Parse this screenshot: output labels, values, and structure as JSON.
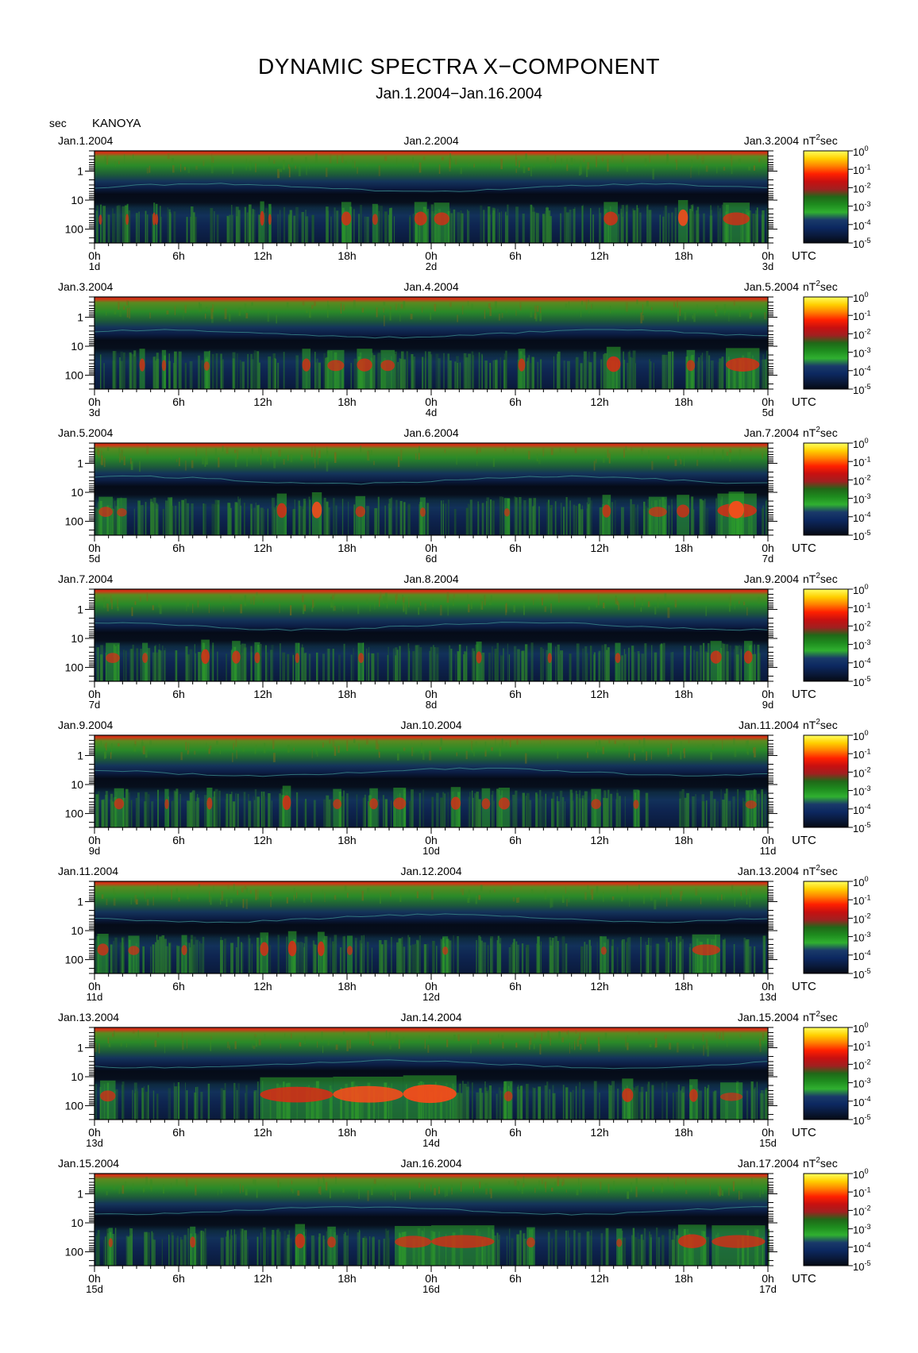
{
  "title": "DYNAMIC SPECTRA X−COMPONENT",
  "subtitle": "Jan.1.2004−Jan.16.2004",
  "station": {
    "unit": "sec",
    "name": "KANOYA"
  },
  "colorbar": {
    "unit_base": "nT",
    "unit_exp": "2",
    "unit_suffix": "sec",
    "ticks": [
      {
        "base": "10",
        "exp": "0"
      },
      {
        "base": "10",
        "exp": "-1"
      },
      {
        "base": "10",
        "exp": "-2"
      },
      {
        "base": "10",
        "exp": "-3"
      },
      {
        "base": "10",
        "exp": "-4"
      },
      {
        "base": "10",
        "exp": "-5"
      }
    ],
    "colors": [
      "#ffff60",
      "#ffd000",
      "#ff8000",
      "#ff2000",
      "#c81010",
      "#a02020",
      "#206818",
      "#1e8c1e",
      "#30b030",
      "#1a3a6a",
      "#0c2860",
      "#0a1a3c",
      "#050a14"
    ]
  },
  "chart_data": {
    "type": "heatmap",
    "description_axes": {
      "y_axis": "period (sec), log scale, inverted: small periods at top",
      "y_ticks": [
        "1",
        "10",
        "100"
      ],
      "x_ticks": [
        "0h",
        "6h",
        "12h",
        "18h",
        "0h",
        "6h",
        "12h",
        "18h",
        "0h"
      ],
      "x_unit": "UTC",
      "color_scale": "power spectral density nT^2 sec, log, 1e-5 to 1e0"
    },
    "panels": [
      {
        "left_date": "Jan.1.2004",
        "mid_date": "Jan.2.2004",
        "right_date": "Jan.3.2004",
        "day_start": "1d",
        "day_mid": "2d",
        "day_end": "3d",
        "events": [
          [
            0.4,
            0.45,
            0.55
          ],
          [
            2.3,
            2.35,
            0.6
          ],
          [
            4.2,
            4.3,
            0.7
          ],
          [
            4.35,
            4.5,
            0.6
          ],
          [
            11.8,
            12.1,
            0.8
          ],
          [
            12.4,
            12.6,
            0.6
          ],
          [
            17.6,
            18.3,
            0.75
          ],
          [
            19.8,
            20.2,
            0.6
          ],
          [
            22.8,
            23.7,
            0.75
          ],
          [
            24.2,
            25.3,
            0.7
          ],
          [
            36.3,
            37.3,
            0.75
          ],
          [
            41.6,
            42.3,
            0.9
          ],
          [
            44.8,
            46.7,
            0.7
          ]
        ]
      },
      {
        "left_date": "Jan.3.2004",
        "mid_date": "Jan.4.2004",
        "right_date": "Jan.5.2004",
        "day_start": "3d",
        "day_mid": "4d",
        "day_end": "5d",
        "events": [
          [
            3.2,
            3.6,
            0.7
          ],
          [
            4.8,
            5.1,
            0.6
          ],
          [
            7.8,
            8.2,
            0.5
          ],
          [
            14.8,
            15.4,
            0.7
          ],
          [
            16.6,
            17.8,
            0.6
          ],
          [
            18.7,
            19.8,
            0.7
          ],
          [
            20.4,
            21.4,
            0.6
          ],
          [
            30.2,
            30.7,
            0.7
          ],
          [
            36.5,
            37.5,
            0.85
          ],
          [
            42.2,
            42.8,
            0.6
          ],
          [
            45.0,
            47.4,
            0.75
          ]
        ]
      },
      {
        "left_date": "Jan.5.2004",
        "mid_date": "Jan.6.2004",
        "right_date": "Jan.7.2004",
        "day_start": "5d",
        "day_mid": "6d",
        "day_end": "7d",
        "events": [
          [
            0.3,
            1.3,
            0.55
          ],
          [
            1.6,
            2.3,
            0.45
          ],
          [
            13.0,
            13.7,
            0.8
          ],
          [
            15.5,
            16.2,
            0.9
          ],
          [
            18.6,
            19.3,
            0.6
          ],
          [
            23.2,
            23.6,
            0.5
          ],
          [
            29.2,
            29.6,
            0.45
          ],
          [
            36.2,
            36.8,
            0.7
          ],
          [
            39.5,
            40.8,
            0.55
          ],
          [
            41.5,
            42.4,
            0.7
          ],
          [
            44.4,
            47.2,
            0.8
          ],
          [
            45.2,
            46.3,
            0.95
          ]
        ]
      },
      {
        "left_date": "Jan.7.2004",
        "mid_date": "Jan.8.2004",
        "right_date": "Jan.9.2004",
        "day_start": "7d",
        "day_mid": "8d",
        "day_end": "9d",
        "events": [
          [
            0.8,
            1.8,
            0.55
          ],
          [
            3.4,
            3.8,
            0.55
          ],
          [
            7.6,
            8.2,
            0.8
          ],
          [
            9.8,
            10.4,
            0.7
          ],
          [
            11.4,
            11.8,
            0.6
          ],
          [
            14.3,
            14.6,
            0.55
          ],
          [
            18.8,
            19.2,
            0.55
          ],
          [
            27.2,
            27.6,
            0.65
          ],
          [
            32.3,
            32.6,
            0.55
          ],
          [
            37.1,
            37.5,
            0.55
          ],
          [
            43.9,
            44.7,
            0.7
          ],
          [
            46.3,
            46.9,
            0.7
          ]
        ]
      },
      {
        "left_date": "Jan.9.2004",
        "mid_date": "Jan.10.2004",
        "right_date": "Jan.11.2004",
        "day_start": "9d",
        "day_mid": "10d",
        "day_end": "11d",
        "events": [
          [
            1.4,
            2.1,
            0.6
          ],
          [
            5.0,
            5.3,
            0.55
          ],
          [
            8.0,
            8.4,
            0.65
          ],
          [
            13.4,
            14.0,
            0.8
          ],
          [
            17.0,
            17.6,
            0.55
          ],
          [
            19.6,
            20.2,
            0.6
          ],
          [
            21.3,
            22.2,
            0.65
          ],
          [
            25.4,
            26.1,
            0.7
          ],
          [
            27.6,
            28.2,
            0.6
          ],
          [
            28.8,
            29.6,
            0.65
          ],
          [
            35.4,
            36.1,
            0.55
          ],
          [
            38.4,
            38.8,
            0.5
          ],
          [
            46.4,
            47.2,
            0.45
          ]
        ]
      },
      {
        "left_date": "Jan.11.2004",
        "mid_date": "Jan.12.2004",
        "right_date": "Jan.13.2004",
        "day_start": "11d",
        "day_mid": "12d",
        "day_end": "13d",
        "events": [
          [
            0.2,
            1.0,
            0.65
          ],
          [
            2.4,
            3.2,
            0.5
          ],
          [
            6.2,
            6.6,
            0.55
          ],
          [
            11.8,
            12.4,
            0.75
          ],
          [
            13.8,
            14.4,
            0.85
          ],
          [
            15.9,
            16.4,
            0.8
          ],
          [
            18.0,
            18.4,
            0.5
          ],
          [
            24.8,
            25.2,
            0.45
          ],
          [
            36.1,
            36.5,
            0.45
          ],
          [
            42.6,
            44.6,
            0.6
          ]
        ]
      },
      {
        "left_date": "Jan.13.2004",
        "mid_date": "Jan.14.2004",
        "right_date": "Jan.15.2004",
        "day_start": "13d",
        "day_mid": "14d",
        "day_end": "15d",
        "events": [
          [
            0.4,
            1.5,
            0.6
          ],
          [
            11.8,
            17.0,
            0.85
          ],
          [
            17.0,
            22.0,
            0.9
          ],
          [
            22.0,
            25.8,
            1.0
          ],
          [
            29.2,
            29.8,
            0.55
          ],
          [
            37.6,
            38.4,
            0.75
          ],
          [
            42.4,
            43.0,
            0.7
          ],
          [
            44.6,
            46.2,
            0.45
          ]
        ]
      },
      {
        "left_date": "Jan.15.2004",
        "mid_date": "Jan.16.2004",
        "right_date": "Jan.17.2004",
        "day_start": "15d",
        "day_mid": "16d",
        "day_end": "17d",
        "events": [
          [
            1.0,
            1.3,
            0.5
          ],
          [
            6.8,
            7.2,
            0.6
          ],
          [
            14.3,
            15.0,
            0.8
          ],
          [
            16.6,
            17.2,
            0.6
          ],
          [
            21.4,
            24.0,
            0.65
          ],
          [
            24.0,
            28.5,
            0.7
          ],
          [
            30.8,
            31.4,
            0.55
          ],
          [
            37.2,
            37.6,
            0.45
          ],
          [
            41.6,
            43.6,
            0.75
          ],
          [
            44.0,
            47.8,
            0.7
          ]
        ]
      }
    ]
  }
}
